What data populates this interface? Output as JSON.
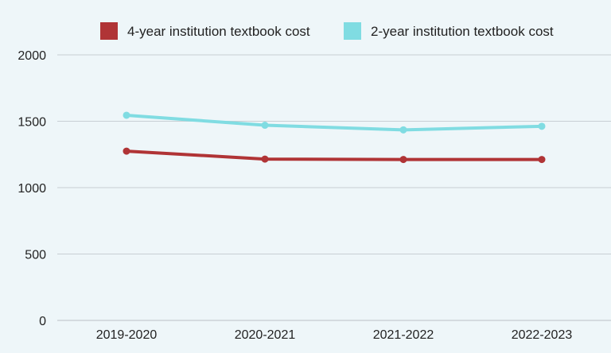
{
  "chart_data": {
    "type": "line",
    "categories": [
      "2019-2020",
      "2020-2021",
      "2021-2022",
      "2022-2023"
    ],
    "series": [
      {
        "name": "4-year institution textbook cost",
        "color": "#b03436",
        "values": [
          1275,
          1215,
          1212,
          1212
        ]
      },
      {
        "name": "2-year institution textbook cost",
        "color": "#80dce2",
        "values": [
          1545,
          1470,
          1435,
          1462
        ]
      }
    ],
    "ylim": [
      0,
      2000
    ],
    "yticks": [
      "0",
      "500",
      "1000",
      "1500",
      "2000"
    ],
    "yticks_values": [
      0,
      500,
      1000,
      1500,
      2000
    ],
    "grid": true,
    "legend": "top"
  }
}
